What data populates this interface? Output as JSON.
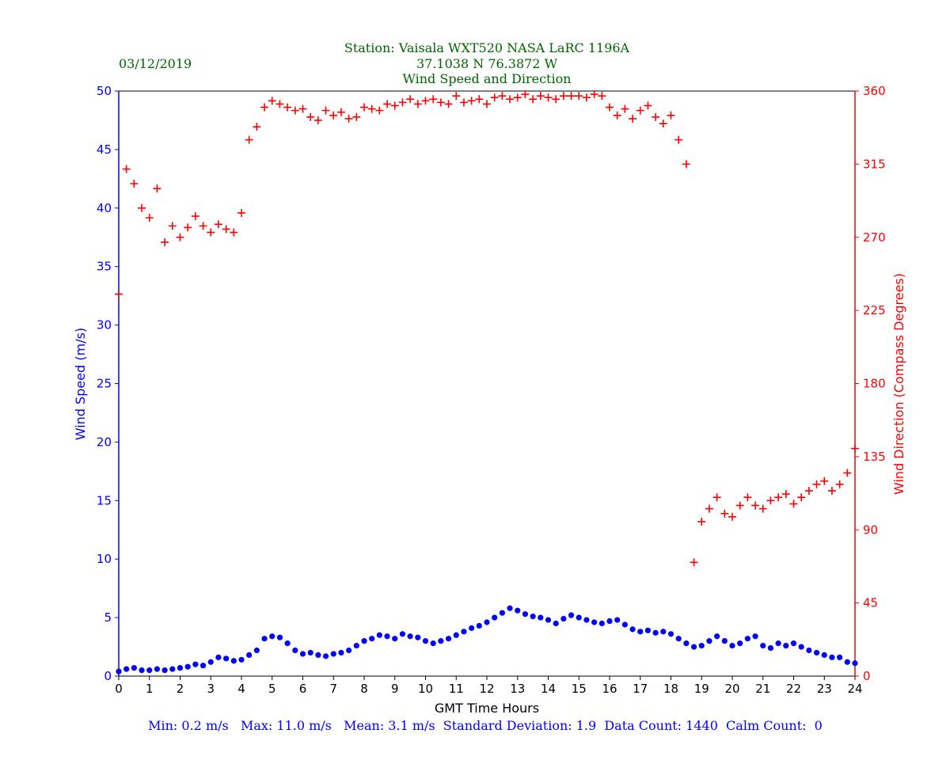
{
  "header": {
    "date": "03/12/2019",
    "station_line": "Station:  Vaisala WXT520  NASA LaRC 1196A",
    "coords_line": "37.1038 N 76.3872 W",
    "title_line": "Wind Speed and Direction"
  },
  "colors": {
    "header_text": "#006400",
    "speed": "#0000ff",
    "direction": "#ff0000",
    "axis": "#000000",
    "stats": "#0000ff"
  },
  "footer": {
    "stats_line": "Min: 0.2 m/s   Max: 11.0 m/s   Mean: 3.1 m/s  Standard Deviation: 1.9  Data Count: 1440  Calm Count:  0"
  },
  "chart_data": {
    "type": "scatter",
    "title": "Wind Speed and Direction",
    "xlabel": "GMT Time Hours",
    "ylabel": "Wind Speed (m/s)",
    "y2label": "Wind Direction (Compass Degrees)",
    "xlim": [
      0,
      24
    ],
    "ylim": [
      0,
      50
    ],
    "y2lim": [
      0,
      360
    ],
    "x_ticks": [
      0,
      1,
      2,
      3,
      4,
      5,
      6,
      7,
      8,
      9,
      10,
      11,
      12,
      13,
      14,
      15,
      16,
      17,
      18,
      19,
      20,
      21,
      22,
      23,
      24
    ],
    "y_ticks": [
      0,
      5,
      10,
      15,
      20,
      25,
      30,
      35,
      40,
      45,
      50
    ],
    "y2_ticks": [
      0,
      45,
      90,
      135,
      180,
      225,
      270,
      315,
      360
    ],
    "series": [
      {
        "name": "Wind Speed (m/s)",
        "axis": "left",
        "marker": "dot",
        "x": [
          0,
          0.25,
          0.5,
          0.75,
          1,
          1.25,
          1.5,
          1.75,
          2,
          2.25,
          2.5,
          2.75,
          3,
          3.25,
          3.5,
          3.75,
          4,
          4.25,
          4.5,
          4.75,
          5,
          5.25,
          5.5,
          5.75,
          6,
          6.25,
          6.5,
          6.75,
          7,
          7.25,
          7.5,
          7.75,
          8,
          8.25,
          8.5,
          8.75,
          9,
          9.25,
          9.5,
          9.75,
          10,
          10.25,
          10.5,
          10.75,
          11,
          11.25,
          11.5,
          11.75,
          12,
          12.25,
          12.5,
          12.75,
          13,
          13.25,
          13.5,
          13.75,
          14,
          14.25,
          14.5,
          14.75,
          15,
          15.25,
          15.5,
          15.75,
          16,
          16.25,
          16.5,
          16.75,
          17,
          17.25,
          17.5,
          17.75,
          18,
          18.25,
          18.5,
          18.75,
          19,
          19.25,
          19.5,
          19.75,
          20,
          20.25,
          20.5,
          20.75,
          21,
          21.25,
          21.5,
          21.75,
          22,
          22.25,
          22.5,
          22.75,
          23,
          23.25,
          23.5,
          23.75,
          24
        ],
        "values": [
          0.4,
          0.6,
          0.7,
          0.5,
          0.5,
          0.6,
          0.5,
          0.6,
          0.7,
          0.8,
          1.0,
          0.9,
          1.2,
          1.6,
          1.5,
          1.3,
          1.4,
          1.8,
          2.2,
          3.2,
          3.4,
          3.3,
          2.8,
          2.2,
          1.9,
          2.0,
          1.8,
          1.7,
          1.9,
          2.0,
          2.2,
          2.6,
          3.0,
          3.2,
          3.5,
          3.4,
          3.2,
          3.6,
          3.4,
          3.3,
          3.0,
          2.8,
          3.0,
          3.2,
          3.5,
          3.8,
          4.1,
          4.3,
          4.6,
          5.0,
          5.4,
          5.8,
          5.6,
          5.3,
          5.1,
          5.0,
          4.8,
          4.5,
          4.9,
          5.2,
          5.0,
          4.8,
          4.6,
          4.5,
          4.7,
          4.8,
          4.4,
          4.0,
          3.8,
          3.9,
          3.7,
          3.8,
          3.6,
          3.2,
          2.8,
          2.5,
          2.6,
          3.0,
          3.4,
          3.0,
          2.6,
          2.8,
          3.2,
          3.4,
          2.6,
          2.4,
          2.8,
          2.6,
          2.8,
          2.5,
          2.2,
          2.0,
          1.8,
          1.6,
          1.6,
          1.2,
          1.1
        ]
      },
      {
        "name": "Wind Direction (Compass Degrees)",
        "axis": "right",
        "marker": "plus",
        "x": [
          0,
          0.25,
          0.5,
          0.75,
          1,
          1.25,
          1.5,
          1.75,
          2,
          2.25,
          2.5,
          2.75,
          3,
          3.25,
          3.5,
          3.75,
          4,
          4.25,
          4.5,
          4.75,
          5,
          5.25,
          5.5,
          5.75,
          6,
          6.25,
          6.5,
          6.75,
          7,
          7.25,
          7.5,
          7.75,
          8,
          8.25,
          8.5,
          8.75,
          9,
          9.25,
          9.5,
          9.75,
          10,
          10.25,
          10.5,
          10.75,
          11,
          11.25,
          11.5,
          11.75,
          12,
          12.25,
          12.5,
          12.75,
          13,
          13.25,
          13.5,
          13.75,
          14,
          14.25,
          14.5,
          14.75,
          15,
          15.25,
          15.5,
          15.75,
          16,
          16.25,
          16.5,
          16.75,
          17,
          17.25,
          17.5,
          17.75,
          18,
          18.25,
          18.5,
          18.75,
          19,
          19.25,
          19.5,
          19.75,
          20,
          20.25,
          20.5,
          20.75,
          21,
          21.25,
          21.5,
          21.75,
          22,
          22.25,
          22.5,
          22.75,
          23,
          23.25,
          23.5,
          23.75,
          24
        ],
        "values": [
          235,
          312,
          303,
          288,
          282,
          300,
          267,
          277,
          270,
          276,
          283,
          277,
          273,
          278,
          275,
          273,
          285,
          330,
          338,
          350,
          354,
          352,
          350,
          348,
          349,
          344,
          342,
          348,
          345,
          347,
          343,
          344,
          350,
          349,
          348,
          352,
          351,
          353,
          355,
          352,
          354,
          355,
          353,
          352,
          357,
          353,
          354,
          355,
          352,
          356,
          357,
          355,
          356,
          358,
          355,
          357,
          356,
          355,
          357,
          357,
          357,
          356,
          358,
          357,
          350,
          345,
          349,
          343,
          348,
          351,
          344,
          340,
          345,
          330,
          315,
          70,
          95,
          103,
          110,
          100,
          98,
          105,
          110,
          105,
          103,
          108,
          110,
          112,
          106,
          110,
          114,
          118,
          120,
          114,
          118,
          125,
          140
        ]
      }
    ],
    "annotations": [
      "03/12/2019"
    ]
  }
}
